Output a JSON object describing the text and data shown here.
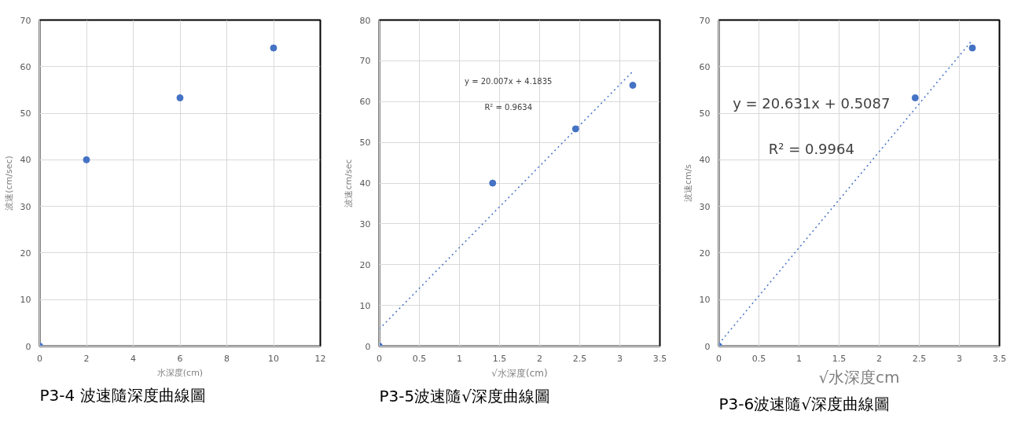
{
  "chart_data": [
    {
      "type": "scatter",
      "xlabel": "水深度(cm)",
      "ylabel": "波速(cm/sec)",
      "xlim": [
        0,
        12
      ],
      "ylim": [
        0,
        70
      ],
      "xticks": [
        0,
        2,
        4,
        6,
        8,
        10,
        12
      ],
      "yticks": [
        0,
        10,
        20,
        30,
        40,
        50,
        60,
        70
      ],
      "grid": true,
      "marker": "circle",
      "series": [
        {
          "color": "#4472c4",
          "x": [
            0,
            2,
            6,
            10
          ],
          "values": [
            0,
            40,
            53.3,
            64
          ]
        }
      ],
      "annotations": [
        "P3-4 波速隨深度曲線圖"
      ]
    },
    {
      "type": "scatter",
      "xlabel": "√水深度(cm)",
      "ylabel": "波速cm/sec",
      "xlim": [
        0,
        3.5
      ],
      "ylim": [
        0,
        80
      ],
      "xticks": [
        0,
        0.5,
        1,
        1.5,
        2,
        2.5,
        3,
        3.5
      ],
      "yticks": [
        0,
        10,
        20,
        30,
        40,
        50,
        60,
        70,
        80
      ],
      "grid": true,
      "marker": "circle",
      "series": [
        {
          "color": "#4472c4",
          "x": [
            0,
            1.414,
            2.449,
            3.162
          ],
          "values": [
            0,
            40,
            53.3,
            64
          ]
        },
        {
          "type": "line",
          "marker": "none",
          "line_style": "dotted",
          "color": "#4472c4",
          "x": [
            0,
            3.162
          ],
          "values": [
            4.2,
            67.4
          ]
        }
      ],
      "annotations": [
        "y = 20.007x + 4.1835",
        "R² = 0.9634",
        "P3-5波速隨√深度曲線圖"
      ]
    },
    {
      "type": "scatter",
      "xlabel": "√水深度cm",
      "ylabel": "波速cm/s",
      "xlim": [
        0,
        3.5
      ],
      "ylim": [
        0,
        70
      ],
      "xticks": [
        0,
        0.5,
        1,
        1.5,
        2,
        2.5,
        3,
        3.5
      ],
      "yticks": [
        0,
        10,
        20,
        30,
        40,
        50,
        60,
        70
      ],
      "grid": true,
      "marker": "circle",
      "series": [
        {
          "color": "#4472c4",
          "x": [
            0,
            2.449,
            3.162
          ],
          "values": [
            0,
            53.3,
            64
          ]
        },
        {
          "type": "line",
          "marker": "none",
          "line_style": "dotted",
          "color": "#4472c4",
          "x": [
            0,
            3.162
          ],
          "values": [
            0.5,
            65.7
          ]
        }
      ],
      "annotations": [
        "y = 20.631x + 0.5087",
        "R² = 0.9964",
        "P3-6波速隨√深度曲線圖"
      ]
    }
  ]
}
